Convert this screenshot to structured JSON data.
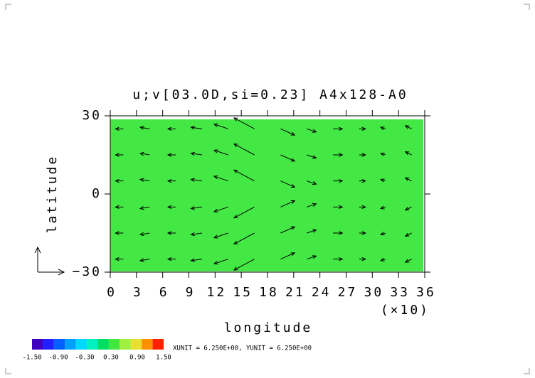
{
  "chart_data": {
    "type": "vector",
    "title": "u;v[03.0D,si=0.23] A4x128-A0",
    "xlabel": "longitude",
    "ylabel": "latitude",
    "x_multiplier": "(×10)",
    "footnote": "XUNIT = 6.250E+00, YUNIT = 6.250E+00",
    "xlim": [
      0,
      36
    ],
    "ylim": [
      -30,
      30
    ],
    "xticks": [
      0,
      3,
      6,
      9,
      12,
      15,
      18,
      21,
      24,
      27,
      30,
      33,
      36
    ],
    "yticks": [
      {
        "value": -30,
        "label": "−30"
      },
      0,
      30
    ],
    "shading_color": "#44e844",
    "arrow_color": "#000000",
    "vectors": {
      "x": [
        1.5,
        4.5,
        7.5,
        10.5,
        13.5,
        16.5,
        19.5,
        22.5,
        25.5,
        28.5,
        31.5,
        34.5,
        1.5,
        4.5,
        7.5,
        10.5,
        13.5,
        16.5,
        19.5,
        22.5,
        25.5,
        28.5,
        31.5,
        34.5,
        1.5,
        4.5,
        7.5,
        10.5,
        13.5,
        16.5,
        19.5,
        22.5,
        25.5,
        28.5,
        31.5,
        34.5,
        1.5,
        4.5,
        7.5,
        10.5,
        13.5,
        16.5,
        19.5,
        22.5,
        25.5,
        28.5,
        31.5,
        34.5,
        1.5,
        4.5,
        7.5,
        10.5,
        13.5,
        16.5,
        19.5,
        22.5,
        25.5,
        28.5,
        31.5,
        34.5,
        1.5,
        4.5,
        7.5,
        10.5,
        13.5,
        16.5,
        19.5,
        22.5,
        25.5,
        28.5,
        31.5,
        34.5
      ],
      "y": [
        -25,
        -25,
        -25,
        -25,
        -25,
        -25,
        -25,
        -25,
        -25,
        -25,
        -25,
        -25,
        -15,
        -15,
        -15,
        -15,
        -15,
        -15,
        -15,
        -15,
        -15,
        -15,
        -15,
        -15,
        -5,
        -5,
        -5,
        -5,
        -5,
        -5,
        -5,
        -5,
        -5,
        -5,
        -5,
        -5,
        5,
        5,
        5,
        5,
        5,
        5,
        5,
        5,
        5,
        5,
        5,
        5,
        15,
        15,
        15,
        15,
        15,
        15,
        15,
        15,
        15,
        15,
        15,
        15,
        25,
        25,
        25,
        25,
        25,
        25,
        25,
        25,
        25,
        25,
        25,
        25
      ],
      "u": [
        -0.5,
        -0.6,
        -0.5,
        -0.7,
        -0.9,
        -1.3,
        0.9,
        0.6,
        0.6,
        0.4,
        -0.3,
        -0.4,
        -0.5,
        -0.6,
        -0.5,
        -0.7,
        -0.9,
        -1.3,
        0.9,
        0.6,
        0.6,
        0.4,
        -0.3,
        -0.4,
        -0.5,
        -0.6,
        -0.5,
        -0.7,
        -0.9,
        -1.3,
        0.9,
        0.6,
        0.6,
        0.4,
        -0.3,
        -0.4,
        -0.5,
        -0.6,
        -0.5,
        -0.7,
        -0.9,
        -1.3,
        0.9,
        0.6,
        0.6,
        0.4,
        -0.3,
        -0.4,
        -0.5,
        -0.6,
        -0.5,
        -0.7,
        -0.9,
        -1.3,
        0.9,
        0.6,
        0.6,
        0.4,
        -0.3,
        -0.4,
        -0.5,
        -0.6,
        -0.5,
        -0.7,
        -0.9,
        -1.3,
        0.9,
        0.6,
        0.6,
        0.4,
        -0.3,
        -0.4
      ],
      "v": [
        0,
        -0.1,
        0,
        -0.1,
        -0.3,
        -0.7,
        0.4,
        0.2,
        0,
        0,
        -0.1,
        -0.2,
        0,
        -0.1,
        0,
        -0.1,
        -0.3,
        -0.7,
        0.4,
        0.2,
        0,
        0,
        -0.1,
        -0.2,
        0,
        -0.1,
        0,
        -0.1,
        -0.3,
        -0.7,
        0.4,
        0.2,
        0,
        0,
        -0.1,
        -0.2,
        0,
        0.1,
        0,
        0.1,
        0.3,
        0.7,
        -0.4,
        -0.2,
        0,
        0,
        0.1,
        0.2,
        0,
        0.1,
        0,
        0.1,
        0.3,
        0.7,
        -0.4,
        -0.2,
        0,
        0,
        0.1,
        0.2,
        0,
        0.1,
        0,
        0.1,
        0.3,
        0.7,
        -0.4,
        -0.2,
        0,
        0,
        0.1,
        0.2
      ]
    },
    "colorbar": {
      "lim": [
        -1.5,
        1.5
      ],
      "colors": [
        "#4000c0",
        "#2020ff",
        "#0060ff",
        "#00a0ff",
        "#00d8ff",
        "#00f0c0",
        "#00e060",
        "#40e840",
        "#a0f040",
        "#e8e030",
        "#ff9000",
        "#ff2000"
      ],
      "ticks": [
        {
          "value": -1.5,
          "label": "-1.50"
        },
        {
          "value": -0.9,
          "label": "-0.90"
        },
        {
          "value": -0.3,
          "label": "-0.30"
        },
        {
          "value": 0.3,
          "label": "0.30"
        },
        {
          "value": 0.9,
          "label": "0.90"
        },
        {
          "value": 1.5,
          "label": "1.50"
        }
      ]
    }
  }
}
